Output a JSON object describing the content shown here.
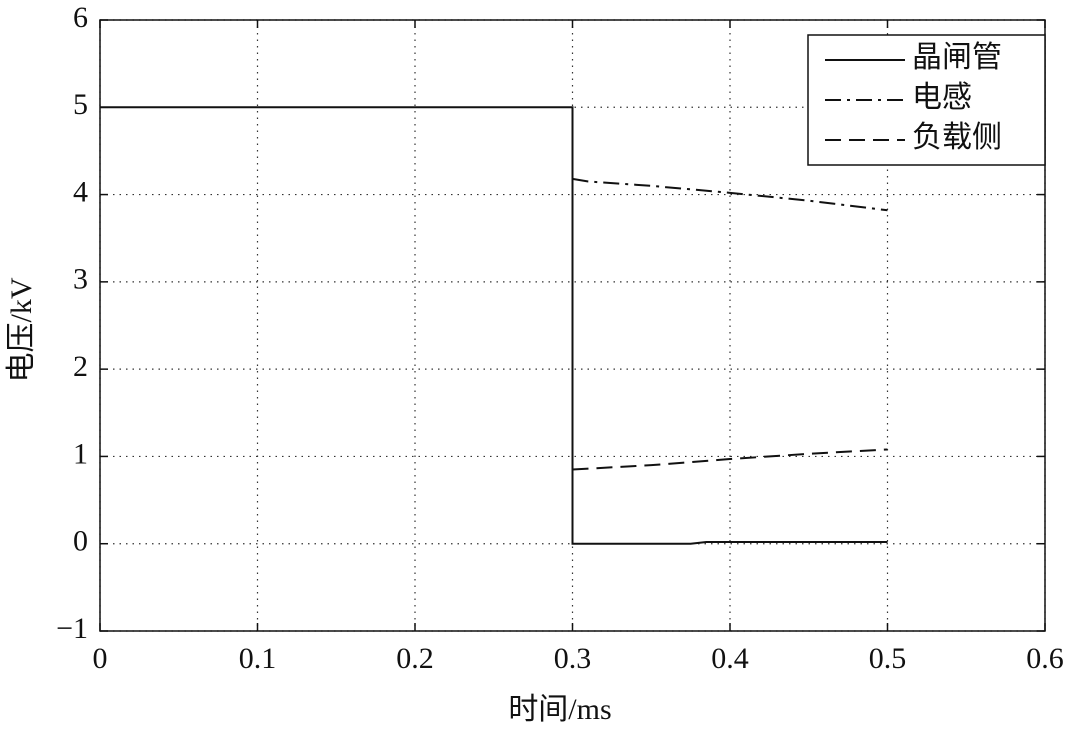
{
  "chart_data": {
    "type": "line",
    "xlabel": "时间/ms",
    "ylabel": "电压/kV",
    "xlim": [
      0,
      0.6
    ],
    "xticks": [
      0,
      0.1,
      0.2,
      0.3,
      0.4,
      0.5,
      0.6
    ],
    "ylim": [
      -1,
      6
    ],
    "yticks": [
      {
        "value": -1,
        "label": "−1"
      },
      0,
      1,
      2,
      3,
      4,
      5,
      6
    ],
    "grid": true,
    "legend": "upper right",
    "series": [
      {
        "name": "晶闸管",
        "color": "#111111",
        "linestyle": "solid",
        "x": [
          0,
          0.3,
          0.3,
          0.375,
          0.385,
          0.5
        ],
        "values": [
          5,
          5,
          0,
          0,
          0.02,
          0.02
        ]
      },
      {
        "name": "电感",
        "color": "#111111",
        "linestyle": "dashdot",
        "x": [
          0.3,
          0.31,
          0.35,
          0.4,
          0.45,
          0.5
        ],
        "values": [
          4.18,
          4.15,
          4.1,
          4.02,
          3.93,
          3.82
        ]
      },
      {
        "name": "负载侧",
        "color": "#111111",
        "linestyle": "dashed",
        "x": [
          0.3,
          0.35,
          0.4,
          0.45,
          0.5
        ],
        "values": [
          0.85,
          0.9,
          0.97,
          1.03,
          1.08
        ]
      }
    ]
  }
}
